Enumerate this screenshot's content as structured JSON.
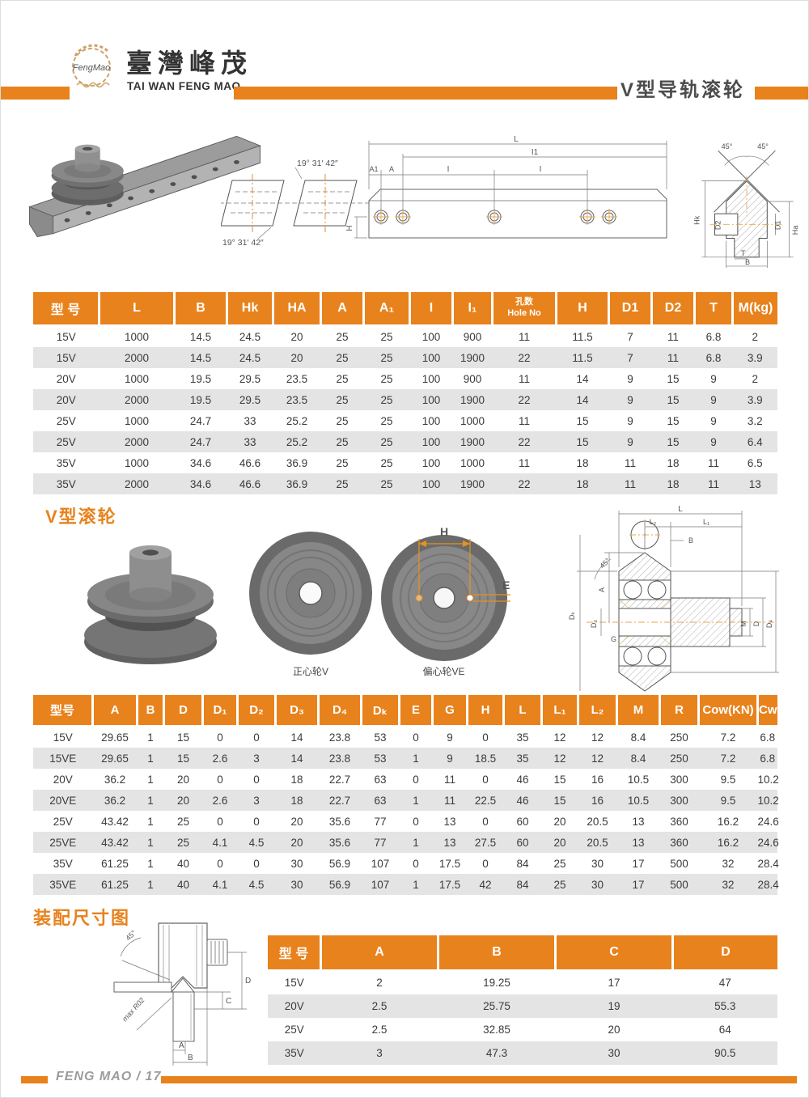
{
  "header": {
    "logo_script": "FengMao",
    "brand_cn": "臺灣峰茂",
    "brand_en": "TAI WAN FENG MAO",
    "page_title": "V型导轨滚轮"
  },
  "sections": {
    "rollers_title": "V型滚轮",
    "assembly_title": "装配尺寸图"
  },
  "colors": {
    "accent": "#E8821C",
    "row_alt": "#E4E4E4"
  },
  "drawings": {
    "rail_section": {
      "angle_top": "19° 31′ 42″",
      "angle_bottom": "19° 31′ 42″"
    },
    "rail_side": {
      "l": "L",
      "i1": "I1",
      "a1": "A1",
      "a": "A",
      "i": "I",
      "h": "H"
    },
    "v_profile": {
      "angle_left": "45°",
      "angle_right": "45°",
      "hk": "Hk",
      "d2": "D2",
      "d1": "D1",
      "ha": "Ha",
      "t": "T",
      "b": "B"
    },
    "roller_front": {
      "h": "H",
      "e": "E"
    },
    "roller_captions": {
      "centric": "正心轮V",
      "eccentric": "偏心轮VE"
    },
    "roller_section": {
      "l": "L",
      "l2": "L₂",
      "l1": "L₁",
      "b": "B",
      "angle": "45°",
      "a": "A",
      "dk": "Dₖ",
      "d3": "D₃",
      "g": "G",
      "m": "M",
      "d": "D",
      "d4": "D₄"
    },
    "assembly": {
      "angle": "45°",
      "radius": "max R02",
      "a": "A",
      "b": "B",
      "c": "C",
      "d": "D"
    }
  },
  "table1": {
    "headers": [
      "型 号",
      "L",
      "B",
      "Hk",
      "HA",
      "A",
      "A₁",
      "I",
      "I₁",
      "孔数\nHole No",
      "H",
      "D1",
      "D2",
      "T",
      "M(kg)"
    ],
    "rows": [
      [
        "15V",
        "1000",
        "14.5",
        "24.5",
        "20",
        "25",
        "25",
        "100",
        "900",
        "11",
        "11.5",
        "7",
        "11",
        "6.8",
        "2"
      ],
      [
        "15V",
        "2000",
        "14.5",
        "24.5",
        "20",
        "25",
        "25",
        "100",
        "1900",
        "22",
        "11.5",
        "7",
        "11",
        "6.8",
        "3.9"
      ],
      [
        "20V",
        "1000",
        "19.5",
        "29.5",
        "23.5",
        "25",
        "25",
        "100",
        "900",
        "11",
        "14",
        "9",
        "15",
        "9",
        "2"
      ],
      [
        "20V",
        "2000",
        "19.5",
        "29.5",
        "23.5",
        "25",
        "25",
        "100",
        "1900",
        "22",
        "14",
        "9",
        "15",
        "9",
        "3.9"
      ],
      [
        "25V",
        "1000",
        "24.7",
        "33",
        "25.2",
        "25",
        "25",
        "100",
        "1000",
        "11",
        "15",
        "9",
        "15",
        "9",
        "3.2"
      ],
      [
        "25V",
        "2000",
        "24.7",
        "33",
        "25.2",
        "25",
        "25",
        "100",
        "1900",
        "22",
        "15",
        "9",
        "15",
        "9",
        "6.4"
      ],
      [
        "35V",
        "1000",
        "34.6",
        "46.6",
        "36.9",
        "25",
        "25",
        "100",
        "1000",
        "11",
        "18",
        "11",
        "18",
        "11",
        "6.5"
      ],
      [
        "35V",
        "2000",
        "34.6",
        "46.6",
        "36.9",
        "25",
        "25",
        "100",
        "1900",
        "22",
        "18",
        "11",
        "18",
        "11",
        "13"
      ]
    ]
  },
  "table2": {
    "headers": [
      "型号",
      "A",
      "B",
      "D",
      "D₁",
      "D₂",
      "D₃",
      "D₄",
      "Dₖ",
      "E",
      "G",
      "H",
      "L",
      "L₁",
      "L₂",
      "M",
      "R",
      "Cow(KN)",
      "Cw(KN)"
    ],
    "rows": [
      [
        "15V",
        "29.65",
        "1",
        "15",
        "0",
        "0",
        "14",
        "23.8",
        "53",
        "0",
        "9",
        "0",
        "35",
        "12",
        "12",
        "8.4",
        "250",
        "7.2",
        "6.8"
      ],
      [
        "15VE",
        "29.65",
        "1",
        "15",
        "2.6",
        "3",
        "14",
        "23.8",
        "53",
        "1",
        "9",
        "18.5",
        "35",
        "12",
        "12",
        "8.4",
        "250",
        "7.2",
        "6.8"
      ],
      [
        "20V",
        "36.2",
        "1",
        "20",
        "0",
        "0",
        "18",
        "22.7",
        "63",
        "0",
        "11",
        "0",
        "46",
        "15",
        "16",
        "10.5",
        "300",
        "9.5",
        "10.2"
      ],
      [
        "20VE",
        "36.2",
        "1",
        "20",
        "2.6",
        "3",
        "18",
        "22.7",
        "63",
        "1",
        "11",
        "22.5",
        "46",
        "15",
        "16",
        "10.5",
        "300",
        "9.5",
        "10.2"
      ],
      [
        "25V",
        "43.42",
        "1",
        "25",
        "0",
        "0",
        "20",
        "35.6",
        "77",
        "0",
        "13",
        "0",
        "60",
        "20",
        "20.5",
        "13",
        "360",
        "16.2",
        "24.6"
      ],
      [
        "25VE",
        "43.42",
        "1",
        "25",
        "4.1",
        "4.5",
        "20",
        "35.6",
        "77",
        "1",
        "13",
        "27.5",
        "60",
        "20",
        "20.5",
        "13",
        "360",
        "16.2",
        "24.6"
      ],
      [
        "35V",
        "61.25",
        "1",
        "40",
        "0",
        "0",
        "30",
        "56.9",
        "107",
        "0",
        "17.5",
        "0",
        "84",
        "25",
        "30",
        "17",
        "500",
        "32",
        "28.4"
      ],
      [
        "35VE",
        "61.25",
        "1",
        "40",
        "4.1",
        "4.5",
        "30",
        "56.9",
        "107",
        "1",
        "17.5",
        "42",
        "84",
        "25",
        "30",
        "17",
        "500",
        "32",
        "28.4"
      ]
    ]
  },
  "table3": {
    "headers": [
      "型 号",
      "A",
      "B",
      "C",
      "D"
    ],
    "rows": [
      [
        "15V",
        "2",
        "19.25",
        "17",
        "47"
      ],
      [
        "20V",
        "2.5",
        "25.75",
        "19",
        "55.3"
      ],
      [
        "25V",
        "2.5",
        "32.85",
        "20",
        "64"
      ],
      [
        "35V",
        "3",
        "47.3",
        "30",
        "90.5"
      ]
    ]
  },
  "footer": {
    "text": "FENG MAO / 17"
  }
}
